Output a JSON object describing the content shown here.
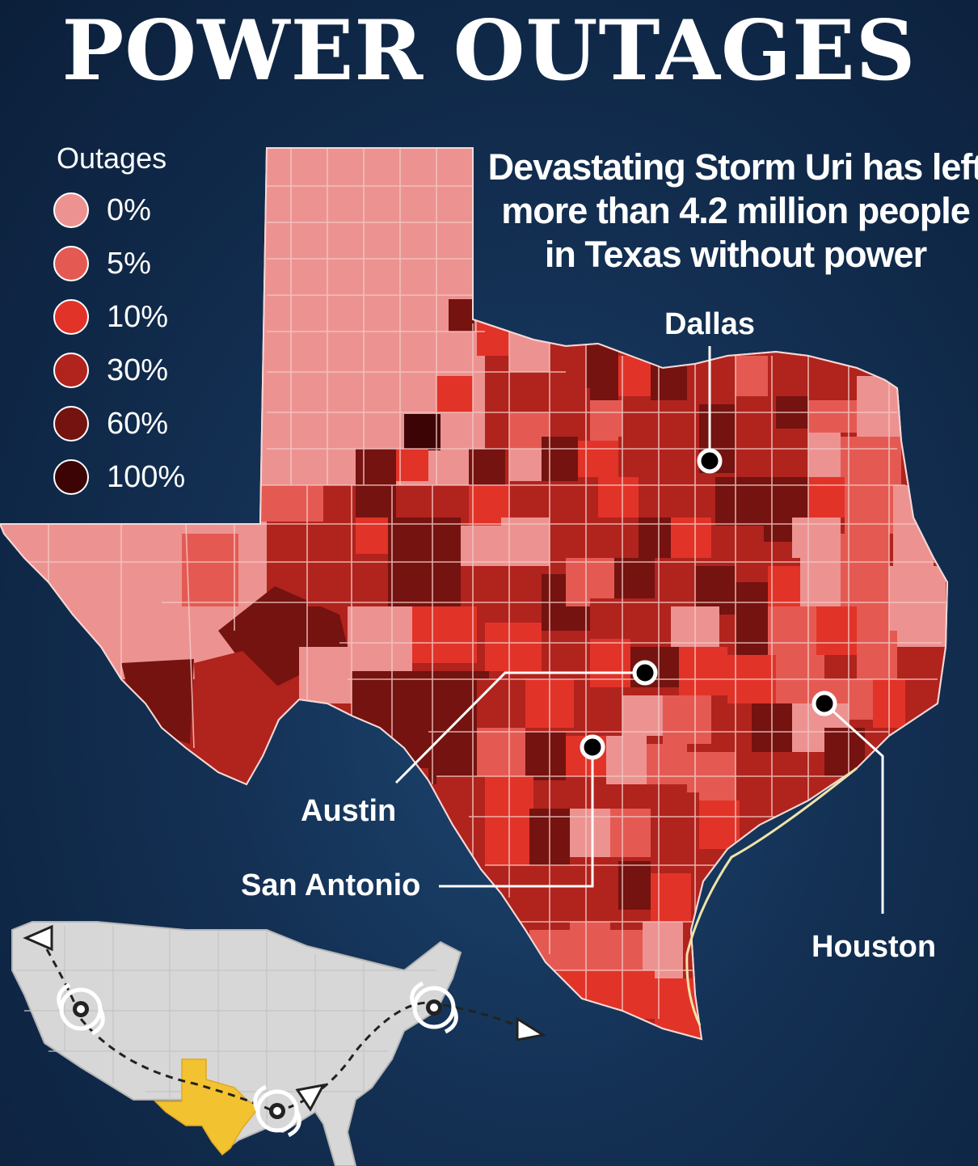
{
  "title": "POWER OUTAGES",
  "subtitle_lines": [
    "Devastating Storm Uri has left",
    "more than 4.2 million people",
    "in Texas without power"
  ],
  "legend": {
    "title": "Outages",
    "items": [
      {
        "label": "0%",
        "color": "#ec9391"
      },
      {
        "label": "5%",
        "color": "#e45a53"
      },
      {
        "label": "10%",
        "color": "#e23328"
      },
      {
        "label": "30%",
        "color": "#b1231d"
      },
      {
        "label": "60%",
        "color": "#741310"
      },
      {
        "label": "100%",
        "color": "#3d0405"
      }
    ]
  },
  "cities": {
    "dallas": "Dallas",
    "austin": "Austin",
    "san_antonio": "San Antonio",
    "houston": "Houston"
  },
  "colors": {
    "background": "#132f52",
    "inset_land": "#d7d7d7",
    "inset_texas": "#f3c230"
  },
  "icons": [
    "storm-icon",
    "arrow-triangle-icon"
  ]
}
